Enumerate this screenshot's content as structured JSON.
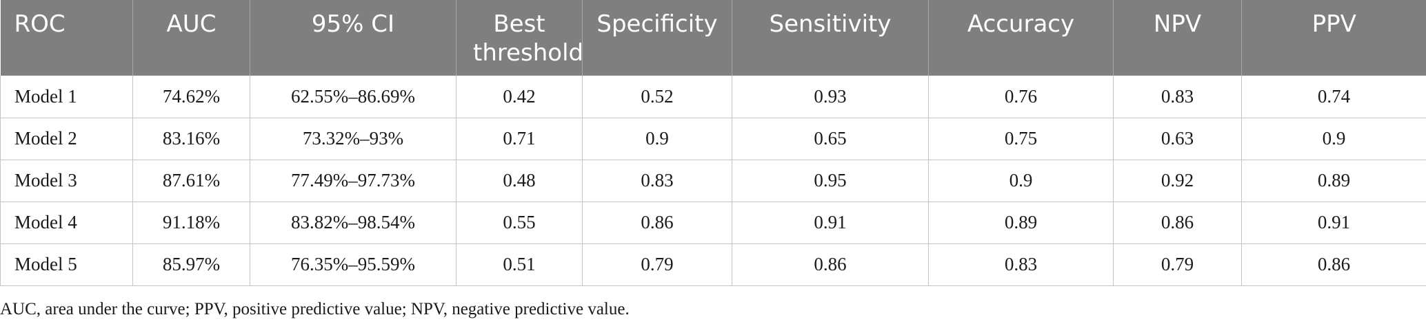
{
  "table": {
    "headers": [
      "ROC",
      "AUC",
      "95% CI",
      "Best threshold",
      "Specificity",
      "Sensitivity",
      "Accuracy",
      "NPV",
      "PPV"
    ],
    "rows": [
      [
        "Model 1",
        "74.62%",
        "62.55%–86.69%",
        "0.42",
        "0.52",
        "0.93",
        "0.76",
        "0.83",
        "0.74"
      ],
      [
        "Model 2",
        "83.16%",
        "73.32%–93%",
        "0.71",
        "0.9",
        "0.65",
        "0.75",
        "0.63",
        "0.9"
      ],
      [
        "Model 3",
        "87.61%",
        "77.49%–97.73%",
        "0.48",
        "0.83",
        "0.95",
        "0.9",
        "0.92",
        "0.89"
      ],
      [
        "Model 4",
        "91.18%",
        "83.82%–98.54%",
        "0.55",
        "0.86",
        "0.91",
        "0.89",
        "0.86",
        "0.91"
      ],
      [
        "Model 5",
        "85.97%",
        "76.35%–95.59%",
        "0.51",
        "0.79",
        "0.86",
        "0.83",
        "0.79",
        "0.86"
      ]
    ]
  },
  "footnote": "AUC, area under the curve; PPV, positive predictive value; NPV, negative predictive value.",
  "colors": {
    "header_bg": "#7f7f7f",
    "header_text": "#ffffff",
    "grid": "#c4c4c4"
  }
}
